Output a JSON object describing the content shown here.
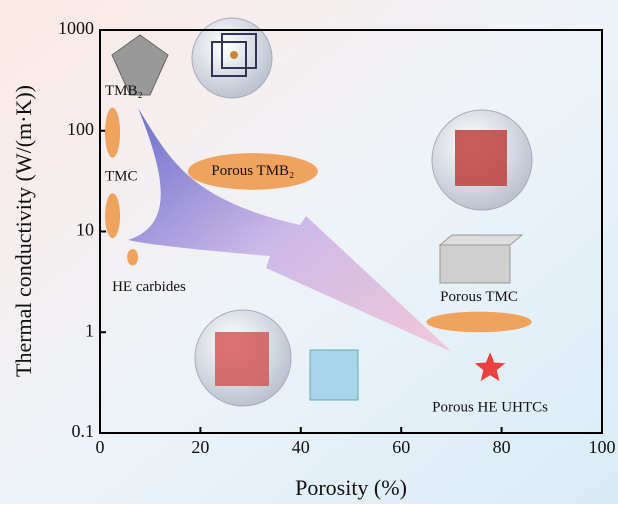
{
  "chart_data": {
    "type": "scatter",
    "xlabel": "Porosity (%)",
    "ylabel": "Thermal conductivity (W/(m·K))",
    "xlim": [
      0,
      100
    ],
    "ylim": [
      0.1,
      1000
    ],
    "yscale": "log",
    "xticks": [
      0,
      20,
      40,
      60,
      80,
      100
    ],
    "yticks": [
      0.1,
      1,
      10,
      100,
      1000
    ],
    "regions": [
      {
        "name": "TMB₂",
        "color": "#f0a35e",
        "x": [
          1,
          4
        ],
        "y": [
          54,
          170
        ]
      },
      {
        "name": "TMC",
        "color": "#f0a35e",
        "x": [
          1,
          4
        ],
        "y": [
          8.6,
          24
        ]
      },
      {
        "name": "HE carbides",
        "color": "#f0a35e",
        "x": [
          5.4,
          7.6
        ],
        "y": [
          4.6,
          6.7
        ]
      },
      {
        "name": "Porous TMB₂",
        "color": "#f0a35e",
        "x": [
          17.5,
          43.4
        ],
        "y": [
          26,
          60
        ]
      },
      {
        "name": "Porous TMC",
        "color": "#f0a35e",
        "x": [
          65,
          86
        ],
        "y": [
          1.0,
          1.6
        ]
      }
    ],
    "points": [
      {
        "name": "Porous HE UHTCs",
        "color": "#e8413f",
        "x": 77.7,
        "y": 0.44,
        "marker": "star"
      }
    ]
  }
}
